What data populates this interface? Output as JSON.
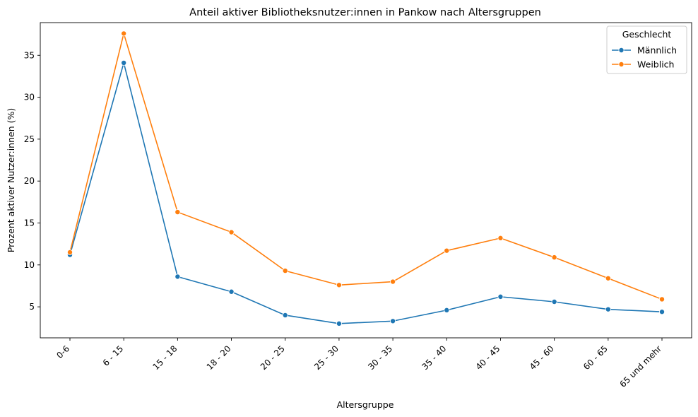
{
  "chart_data": {
    "type": "line",
    "title": "Anteil aktiver Bibliotheksnutzer:innen in Pankow nach Altersgruppen",
    "xlabel": "Altersgruppe",
    "ylabel": "Prozent aktiver Nutzer:innen (%)",
    "categories": [
      "0-6",
      "6 - 15",
      "15 - 18",
      "18 - 20",
      "20 - 25",
      "25 - 30",
      "30 - 35",
      "35 - 40",
      "40 - 45",
      "45 - 60",
      "60 - 65",
      "65 und mehr"
    ],
    "yticks": [
      5,
      10,
      15,
      20,
      25,
      30,
      35
    ],
    "ylim": [
      1.3,
      38.9
    ],
    "grid": false,
    "legend": {
      "title": "Geschlecht",
      "placement": "top-right"
    },
    "series": [
      {
        "name": "Männlich",
        "color": "#1f77b4",
        "values": [
          11.2,
          34.1,
          8.6,
          6.8,
          4.0,
          3.0,
          3.3,
          4.6,
          6.2,
          5.6,
          4.7,
          4.4
        ]
      },
      {
        "name": "Weiblich",
        "color": "#ff7f0e",
        "values": [
          11.5,
          37.6,
          16.3,
          13.9,
          9.3,
          7.6,
          8.0,
          11.7,
          13.2,
          10.9,
          8.4,
          5.9
        ]
      }
    ]
  }
}
